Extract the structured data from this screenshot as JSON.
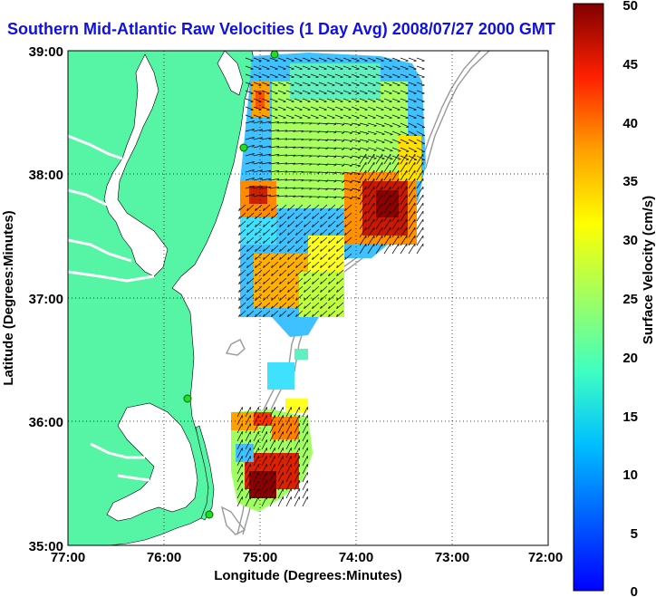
{
  "title": "Southern Mid-Atlantic Raw Velocities (1 Day Avg) 2008/07/27 2000 GMT",
  "map": {
    "xlabel": "Longitude (Degrees:Minutes)",
    "ylabel": "Latitude (Degrees:Minutes)",
    "x_ticks": [
      "77:00",
      "76:00",
      "75:00",
      "74:00",
      "73:00",
      "72:00"
    ],
    "y_ticks": [
      "39:00",
      "38:00",
      "37:00",
      "36:00",
      "35:00"
    ],
    "land_color": "#55f5a5",
    "grid": "dotted"
  },
  "colorbar": {
    "label": "Surface Velocity (cm/s)",
    "ticks": [
      "50",
      "45",
      "40",
      "35",
      "30",
      "25",
      "20",
      "15",
      "10",
      "5",
      "0"
    ],
    "range": [
      0,
      50
    ],
    "colormap": "jet"
  },
  "stations_icon": "green-circle"
}
